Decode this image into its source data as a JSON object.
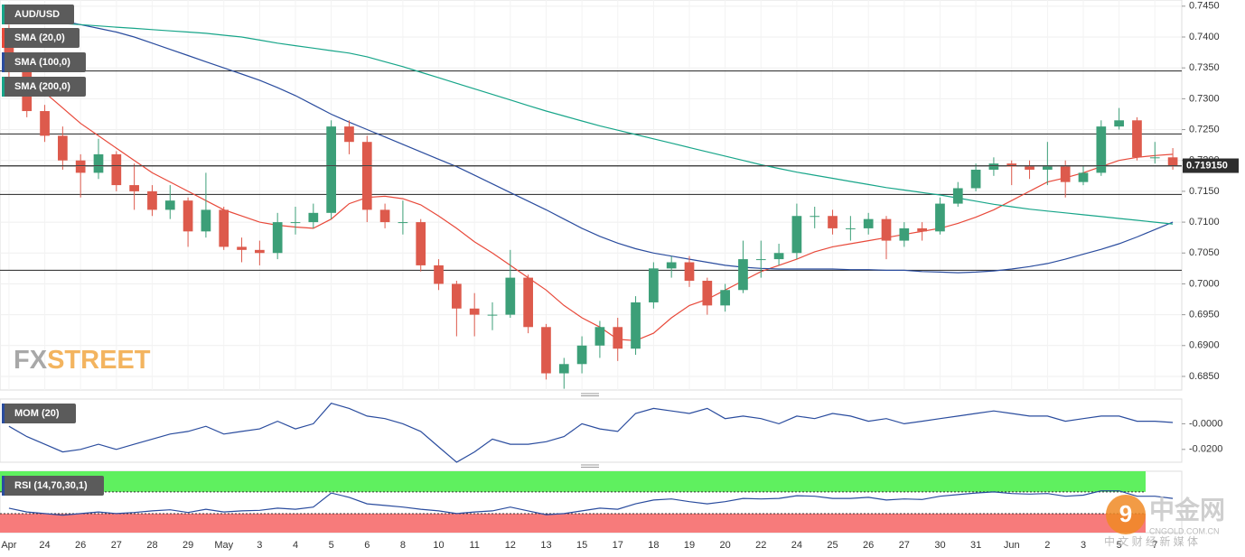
{
  "chart_data": {
    "type": "candlestick",
    "title": "AUD/USD",
    "categories": [
      "Apr",
      null,
      "24",
      null,
      "26",
      null,
      "27",
      null,
      "28",
      null,
      "29",
      null,
      "May",
      null,
      "3",
      null,
      "4",
      null,
      "5",
      null,
      "6",
      null,
      "8",
      null,
      "10",
      null,
      "11",
      null,
      "12",
      null,
      "13",
      null,
      "15",
      null,
      "17",
      null,
      "18",
      null,
      "19",
      null,
      "20",
      null,
      "22",
      null,
      "24",
      null,
      "25",
      null,
      "26",
      null,
      "27",
      null,
      "30",
      null,
      "31",
      null,
      "Jun",
      null,
      "2",
      null,
      "3",
      null,
      "5",
      null,
      "7",
      null
    ],
    "open": [
      0.7395,
      0.735,
      0.728,
      0.724,
      0.72,
      0.718,
      0.721,
      0.716,
      0.715,
      0.712,
      0.7135,
      0.7085,
      0.712,
      0.706,
      0.7055,
      0.705,
      0.71,
      0.71,
      0.7115,
      0.7255,
      0.723,
      0.712,
      0.71,
      0.71,
      0.703,
      0.7,
      0.696,
      0.695,
      0.695,
      0.701,
      0.693,
      0.6855,
      0.687,
      0.69,
      0.693,
      0.6895,
      0.697,
      0.7025,
      0.7035,
      0.7005,
      0.6965,
      0.699,
      0.704,
      0.704,
      0.705,
      0.711,
      0.711,
      0.709,
      0.709,
      0.7105,
      0.707,
      0.709,
      0.7085,
      0.713,
      0.7155,
      0.7185,
      0.7195,
      0.719,
      0.7185,
      0.719,
      0.7165,
      0.718,
      0.7255,
      0.7265,
      0.7205,
      0.7205
    ],
    "high": [
      0.742,
      0.7365,
      0.729,
      0.7255,
      0.721,
      0.7235,
      0.7215,
      0.7195,
      0.716,
      0.716,
      0.714,
      0.718,
      0.7125,
      0.7075,
      0.707,
      0.7115,
      0.7125,
      0.713,
      0.7265,
      0.7265,
      0.724,
      0.713,
      0.7135,
      0.7105,
      0.704,
      0.7005,
      0.6985,
      0.697,
      0.7055,
      0.7015,
      0.6935,
      0.688,
      0.6915,
      0.694,
      0.6945,
      0.698,
      0.7035,
      0.7045,
      0.7045,
      0.701,
      0.7,
      0.707,
      0.707,
      0.7065,
      0.713,
      0.7125,
      0.712,
      0.711,
      0.7115,
      0.711,
      0.71,
      0.71,
      0.714,
      0.7165,
      0.7195,
      0.7205,
      0.72,
      0.72,
      0.723,
      0.72,
      0.719,
      0.7265,
      0.7285,
      0.727,
      0.723,
      0.722
    ],
    "low": [
      0.733,
      0.727,
      0.723,
      0.7185,
      0.714,
      0.717,
      0.715,
      0.712,
      0.711,
      0.7105,
      0.706,
      0.7075,
      0.7055,
      0.7035,
      0.703,
      0.704,
      0.708,
      0.709,
      0.7105,
      0.721,
      0.71,
      0.709,
      0.708,
      0.702,
      0.699,
      0.6915,
      0.6915,
      0.6925,
      0.6945,
      0.692,
      0.6845,
      0.683,
      0.6855,
      0.688,
      0.6875,
      0.6885,
      0.696,
      0.701,
      0.6995,
      0.695,
      0.6955,
      0.6985,
      0.701,
      0.703,
      0.704,
      0.709,
      0.708,
      0.707,
      0.708,
      0.704,
      0.706,
      0.707,
      0.708,
      0.7125,
      0.715,
      0.7175,
      0.716,
      0.717,
      0.716,
      0.714,
      0.716,
      0.7175,
      0.725,
      0.72,
      0.7195,
      0.7185
    ],
    "close": [
      0.735,
      0.728,
      0.724,
      0.72,
      0.718,
      0.721,
      0.716,
      0.715,
      0.712,
      0.7135,
      0.7085,
      0.712,
      0.706,
      0.7055,
      0.705,
      0.71,
      0.71,
      0.7115,
      0.7255,
      0.723,
      0.712,
      0.71,
      0.71,
      0.703,
      0.7,
      0.696,
      0.695,
      0.695,
      0.701,
      0.693,
      0.6855,
      0.687,
      0.69,
      0.693,
      0.6895,
      0.697,
      0.7025,
      0.7035,
      0.7005,
      0.6965,
      0.699,
      0.704,
      0.704,
      0.705,
      0.711,
      0.711,
      0.709,
      0.709,
      0.7105,
      0.707,
      0.709,
      0.7085,
      0.713,
      0.7155,
      0.7185,
      0.7195,
      0.719,
      0.7185,
      0.719,
      0.7165,
      0.718,
      0.7255,
      0.7265,
      0.7205,
      0.7205,
      0.7192
    ],
    "up_color": "#3c9f78",
    "down_color": "#dd5a4c",
    "title_color": "#17a589",
    "series": [
      {
        "name": "SMA (20,0)",
        "color": "#e8493a",
        "values": [
          0.737,
          0.734,
          0.731,
          0.7285,
          0.726,
          0.724,
          0.722,
          0.72,
          0.718,
          0.7165,
          0.715,
          0.7135,
          0.712,
          0.711,
          0.71,
          0.7095,
          0.7092,
          0.709,
          0.7105,
          0.713,
          0.714,
          0.7142,
          0.7138,
          0.7128,
          0.711,
          0.709,
          0.7068,
          0.705,
          0.703,
          0.701,
          0.699,
          0.6965,
          0.6945,
          0.693,
          0.691,
          0.6908,
          0.692,
          0.6945,
          0.6965,
          0.6975,
          0.699,
          0.7005,
          0.702,
          0.703,
          0.704,
          0.7052,
          0.706,
          0.7065,
          0.707,
          0.7075,
          0.708,
          0.7085,
          0.709,
          0.7098,
          0.7108,
          0.712,
          0.7135,
          0.715,
          0.7165,
          0.7172,
          0.718,
          0.719,
          0.72,
          0.7205,
          0.7208,
          0.721
        ]
      },
      {
        "name": "SMA (100,0)",
        "color": "#2a4c9e",
        "values": [
          0.7446,
          0.744,
          0.7433,
          0.7426,
          0.742,
          0.7414,
          0.7408,
          0.74,
          0.739,
          0.738,
          0.737,
          0.736,
          0.735,
          0.734,
          0.733,
          0.7318,
          0.7305,
          0.729,
          0.7275,
          0.7262,
          0.725,
          0.7238,
          0.7226,
          0.7214,
          0.7202,
          0.719,
          0.7176,
          0.7162,
          0.7148,
          0.7134,
          0.712,
          0.7105,
          0.709,
          0.7077,
          0.7066,
          0.7057,
          0.705,
          0.7045,
          0.704,
          0.7035,
          0.703,
          0.7027,
          0.7025,
          0.7024,
          0.7024,
          0.7024,
          0.7024,
          0.7023,
          0.7023,
          0.7022,
          0.7022,
          0.702,
          0.7019,
          0.7018,
          0.7019,
          0.7021,
          0.7024,
          0.7028,
          0.7033,
          0.704,
          0.7048,
          0.7056,
          0.7065,
          0.7076,
          0.7088,
          0.71
        ]
      },
      {
        "name": "SMA (200,0)",
        "color": "#17a589",
        "values": [
          0.7428,
          0.7426,
          0.7424,
          0.7422,
          0.742,
          0.7418,
          0.7416,
          0.7414,
          0.7412,
          0.741,
          0.7408,
          0.7406,
          0.7403,
          0.74,
          0.7395,
          0.739,
          0.7386,
          0.7382,
          0.7378,
          0.7374,
          0.7368,
          0.736,
          0.7352,
          0.7343,
          0.7334,
          0.7325,
          0.7316,
          0.7307,
          0.7298,
          0.7289,
          0.728,
          0.7272,
          0.7264,
          0.7256,
          0.7249,
          0.7242,
          0.7235,
          0.7228,
          0.7221,
          0.7214,
          0.7207,
          0.72,
          0.7193,
          0.7187,
          0.7181,
          0.7176,
          0.7171,
          0.7166,
          0.7161,
          0.7156,
          0.7152,
          0.7148,
          0.7144,
          0.7139,
          0.7134,
          0.7129,
          0.7125,
          0.7121,
          0.7118,
          0.7115,
          0.7112,
          0.7109,
          0.7106,
          0.7103,
          0.71,
          0.7097
        ]
      }
    ],
    "levels": [
      0.7345,
      0.7243,
      0.7191,
      0.7145,
      0.7022
    ],
    "last_price": {
      "value": 0.71915,
      "label": "0.719150"
    },
    "ylim": [
      0.6828,
      0.746
    ],
    "yticks": [
      {
        "value": 0.745,
        "label": "0.7450"
      },
      {
        "value": 0.74,
        "label": "0.7400"
      },
      {
        "value": 0.735,
        "label": "0.7350"
      },
      {
        "value": 0.73,
        "label": "0.7300"
      },
      {
        "value": 0.725,
        "label": "0.7250"
      },
      {
        "value": 0.72,
        "label": "0.7200"
      },
      {
        "value": 0.715,
        "label": "0.7150"
      },
      {
        "value": 0.71,
        "label": "0.7100"
      },
      {
        "value": 0.705,
        "label": "0.7050"
      },
      {
        "value": 0.7,
        "label": "0.7000"
      },
      {
        "value": 0.695,
        "label": "0.6950"
      },
      {
        "value": 0.69,
        "label": "0.6900"
      },
      {
        "value": 0.685,
        "label": "0.6850"
      }
    ],
    "grid": true,
    "panels": [
      {
        "type": "line",
        "name": "MOM (20)",
        "color": "#2a4c9e",
        "values": [
          -0.002,
          -0.01,
          -0.016,
          -0.022,
          -0.02,
          -0.016,
          -0.02,
          -0.016,
          -0.012,
          -0.008,
          -0.006,
          -0.002,
          -0.008,
          -0.006,
          -0.004,
          0.002,
          -0.004,
          0.0,
          0.016,
          0.012,
          0.006,
          0.004,
          0.0,
          -0.006,
          -0.018,
          -0.03,
          -0.022,
          -0.012,
          -0.016,
          -0.016,
          -0.014,
          -0.01,
          0.0,
          -0.004,
          -0.006,
          0.008,
          0.012,
          0.01,
          0.008,
          0.012,
          0.004,
          0.006,
          0.004,
          0.0,
          0.006,
          0.004,
          0.008,
          0.006,
          0.002,
          0.004,
          0.0,
          0.002,
          0.004,
          0.006,
          0.008,
          0.01,
          0.008,
          0.006,
          0.006,
          0.002,
          0.004,
          0.006,
          0.006,
          0.002,
          0.002,
          0.001
        ],
        "ylim": [
          -0.03,
          0.0193
        ],
        "yticks": [
          {
            "value": 0,
            "label": "-0.0000"
          },
          {
            "value": -0.02,
            "label": "-0.0200"
          }
        ]
      },
      {
        "type": "line",
        "name": "RSI (14,70,30,1)",
        "color": "#2a4c9e",
        "values": [
          40,
          33,
          30,
          27,
          30,
          33,
          30,
          32,
          35,
          37,
          32,
          38,
          33,
          35,
          36,
          40,
          38,
          42,
          68,
          60,
          48,
          45,
          42,
          38,
          35,
          30,
          33,
          35,
          42,
          35,
          28,
          30,
          35,
          40,
          38,
          48,
          55,
          57,
          52,
          48,
          52,
          58,
          57,
          58,
          63,
          62,
          58,
          58,
          60,
          55,
          57,
          56,
          62,
          65,
          68,
          70,
          67,
          66,
          67,
          62,
          64,
          72,
          72,
          62,
          62,
          58
        ],
        "ylim": [
          -5,
          108
        ],
        "overbought": 70,
        "oversold": 30,
        "overbought_color": "#5ff05f",
        "oversold_color": "#f77b7b"
      }
    ]
  },
  "watermarks": {
    "brand_a": "FX",
    "brand_b": "STREET",
    "logo": "中金网",
    "site": "CNGOLD.COM.CN",
    "tagline": "中 文 财 经 新 媒 体"
  }
}
